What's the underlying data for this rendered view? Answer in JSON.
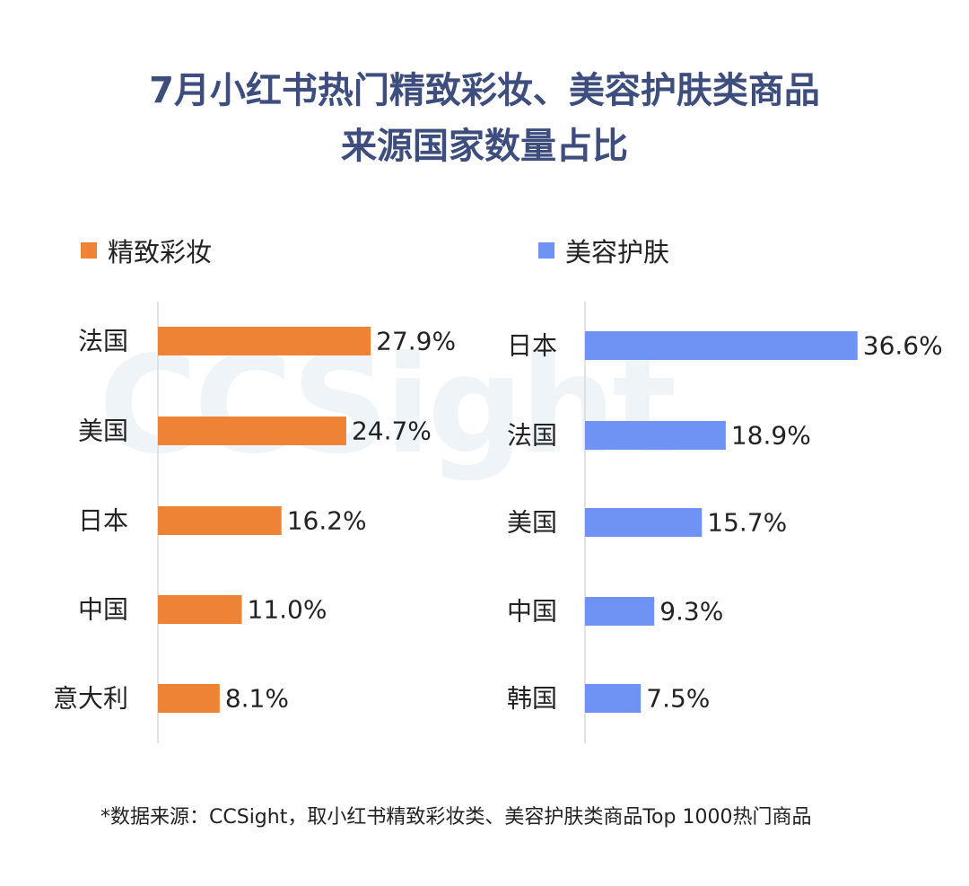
{
  "title": {
    "line1": "7月小红书热门精致彩妆、美容护肤类商品",
    "line2": "来源国家数量占比"
  },
  "watermark": "CCSight",
  "footnote": "*数据来源：CCSight，取小红书精致彩妆类、美容护肤类商品Top 1000热门商品",
  "colors": {
    "title": "#3d4d7d",
    "makeup": "#ee8336",
    "skincare": "#6f93f5"
  },
  "chart_data": [
    {
      "type": "bar",
      "orientation": "horizontal",
      "legend": "精致彩妆",
      "color": "#ee8336",
      "categories": [
        "法国",
        "美国",
        "日本",
        "中国",
        "意大利"
      ],
      "values": [
        27.9,
        24.7,
        16.2,
        11.0,
        8.1
      ],
      "value_labels": [
        "27.9%",
        "24.7%",
        "16.2%",
        "11.0%",
        "8.1%"
      ],
      "unit": "%"
    },
    {
      "type": "bar",
      "orientation": "horizontal",
      "legend": "美容护肤",
      "color": "#6f93f5",
      "categories": [
        "日本",
        "法国",
        "美国",
        "中国",
        "韩国"
      ],
      "values": [
        36.6,
        18.9,
        15.7,
        9.3,
        7.5
      ],
      "value_labels": [
        "36.6%",
        "18.9%",
        "15.7%",
        "9.3%",
        "7.5%"
      ],
      "unit": "%"
    }
  ]
}
